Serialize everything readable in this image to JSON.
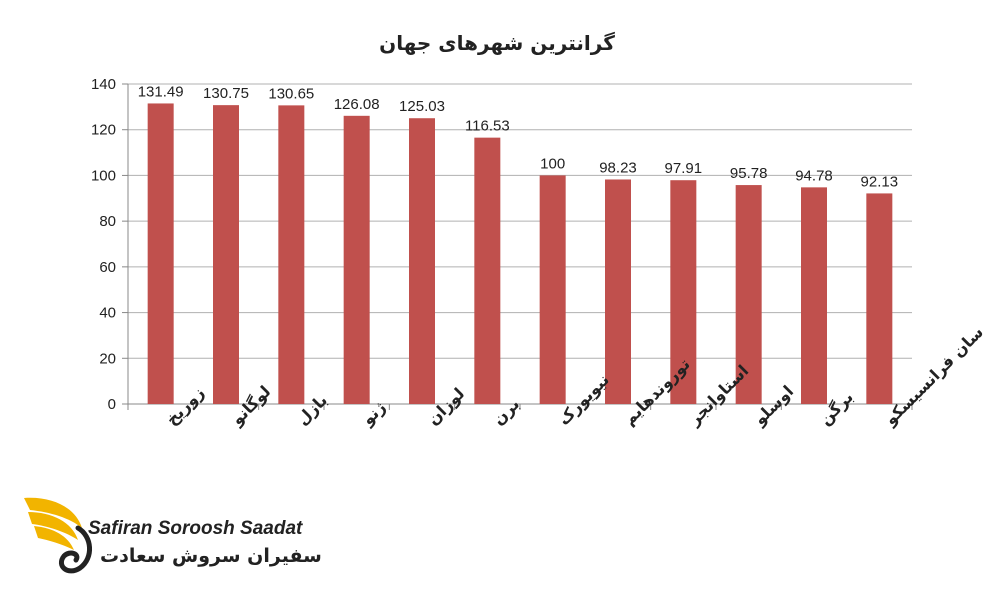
{
  "chart_data": {
    "type": "bar",
    "title": "گرانترین شهرهای جهان",
    "categories": [
      "زوریخ",
      "لوگانو",
      "بازل",
      "ژنو",
      "لوزان",
      "برن",
      "نیویورک",
      "توروندهایم",
      "استاوانجر",
      "اوسلو",
      "برگن",
      "سان فرانسیسکو"
    ],
    "values": [
      131.49,
      130.75,
      130.65,
      126.08,
      125.03,
      116.53,
      100,
      98.23,
      97.91,
      95.78,
      94.78,
      92.13
    ],
    "data_labels": [
      "131.49",
      "130.75",
      "130.65",
      "126.08",
      "125.03",
      "116.53",
      "100",
      "98.23",
      "97.91",
      "95.78",
      "94.78",
      "92.13"
    ],
    "ylim": [
      0,
      140
    ],
    "yticks": [
      0,
      20,
      40,
      60,
      80,
      100,
      120,
      140
    ],
    "grid": true,
    "bar_color": "#c0504d"
  },
  "logo": {
    "text_en": "Safiran Soroosh Saadat",
    "text_fa": "سفیران سروش سعادت",
    "color": "#f2b400"
  }
}
